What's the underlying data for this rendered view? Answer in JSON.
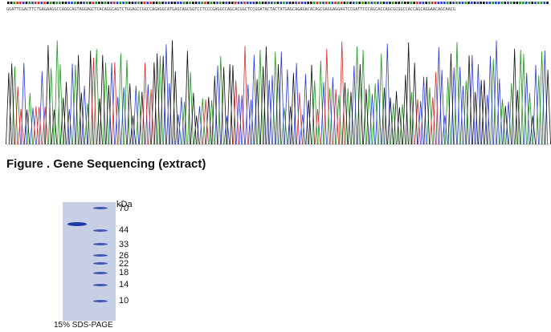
{
  "sequence": {
    "text": "GGATTCGACTTCTGAGAAGGCCAGGCAGTAGGAGCTCACAGGCAGTCTGGAGCCGGCCAGAGGCATGAGCAGCGGTCCTCCCGAGGCCAGCACGGCTCCGGATACTACTATGAGCAGAGACACAGCGAGGAGGAGTCCGATTCCCAGCACCAGCGCGGCCACCAGCAGGAACAGCAACG",
    "colors": {
      "A": "#1c9a1c",
      "C": "#2b3bd6",
      "G": "#111111",
      "T": "#d62b2b"
    }
  },
  "caption": "Figure . Gene Sequencing (extract)",
  "gel": {
    "unit_label": "kDa",
    "markers": [
      {
        "label": "70",
        "kda": 70
      },
      {
        "label": "44",
        "kda": 44
      },
      {
        "label": "33",
        "kda": 33
      },
      {
        "label": "26",
        "kda": 26
      },
      {
        "label": "22",
        "kda": 22
      },
      {
        "label": "18",
        "kda": 18
      },
      {
        "label": "14",
        "kda": 14
      },
      {
        "label": "10",
        "kda": 10
      }
    ],
    "sample_band_kda": 50,
    "caption": "15% SDS-PAGE",
    "colors": {
      "background": "#c7cfe6",
      "band": "#1f3aa6"
    }
  }
}
